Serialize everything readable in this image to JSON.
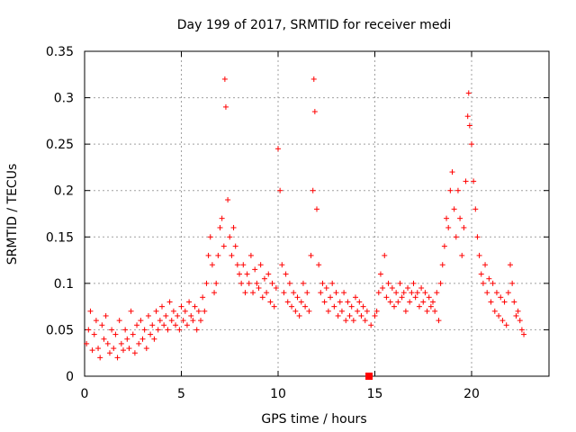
{
  "chart_data": {
    "type": "scatter",
    "title": "Day 199 of 2017, SRMTID for receiver medi",
    "xlabel": "GPS time / hours",
    "ylabel": "SRMTID / TECUs",
    "xlim": [
      0,
      24
    ],
    "ylim": [
      0,
      0.35
    ],
    "grid": true,
    "marker": "plus",
    "marker_color": "#ff0000",
    "x_ticks": [
      {
        "value": 0,
        "label": "0"
      },
      {
        "value": 5,
        "label": "5"
      },
      {
        "value": 10,
        "label": "10"
      },
      {
        "value": 15,
        "label": "15"
      },
      {
        "value": 20,
        "label": "20"
      }
    ],
    "y_ticks": [
      {
        "value": 0,
        "label": "0"
      },
      {
        "value": 0.05,
        "label": "0.05"
      },
      {
        "value": 0.1,
        "label": "0.1"
      },
      {
        "value": 0.15,
        "label": "0.15"
      },
      {
        "value": 0.2,
        "label": "0.2"
      },
      {
        "value": 0.25,
        "label": "0.25"
      },
      {
        "value": 0.3,
        "label": "0.3"
      },
      {
        "value": 0.35,
        "label": "0.35"
      }
    ],
    "series": [
      {
        "name": "SRMTID",
        "points": [
          [
            0.1,
            0.035
          ],
          [
            0.2,
            0.05
          ],
          [
            0.3,
            0.07
          ],
          [
            0.4,
            0.028
          ],
          [
            0.5,
            0.045
          ],
          [
            0.6,
            0.06
          ],
          [
            0.7,
            0.03
          ],
          [
            0.8,
            0.02
          ],
          [
            0.9,
            0.055
          ],
          [
            1.0,
            0.04
          ],
          [
            1.1,
            0.065
          ],
          [
            1.2,
            0.035
          ],
          [
            1.3,
            0.025
          ],
          [
            1.4,
            0.05
          ],
          [
            1.5,
            0.03
          ],
          [
            1.6,
            0.045
          ],
          [
            1.7,
            0.02
          ],
          [
            1.8,
            0.06
          ],
          [
            1.9,
            0.035
          ],
          [
            2.0,
            0.028
          ],
          [
            2.1,
            0.05
          ],
          [
            2.2,
            0.04
          ],
          [
            2.3,
            0.03
          ],
          [
            2.4,
            0.07
          ],
          [
            2.5,
            0.045
          ],
          [
            2.6,
            0.025
          ],
          [
            2.7,
            0.055
          ],
          [
            2.8,
            0.035
          ],
          [
            2.9,
            0.06
          ],
          [
            3.0,
            0.04
          ],
          [
            3.1,
            0.05
          ],
          [
            3.2,
            0.03
          ],
          [
            3.3,
            0.065
          ],
          [
            3.4,
            0.045
          ],
          [
            3.5,
            0.055
          ],
          [
            3.6,
            0.04
          ],
          [
            3.7,
            0.07
          ],
          [
            3.8,
            0.05
          ],
          [
            3.9,
            0.06
          ],
          [
            4.0,
            0.075
          ],
          [
            4.1,
            0.055
          ],
          [
            4.2,
            0.065
          ],
          [
            4.3,
            0.05
          ],
          [
            4.4,
            0.08
          ],
          [
            4.5,
            0.06
          ],
          [
            4.6,
            0.07
          ],
          [
            4.7,
            0.055
          ],
          [
            4.8,
            0.065
          ],
          [
            4.9,
            0.05
          ],
          [
            5.0,
            0.075
          ],
          [
            5.1,
            0.06
          ],
          [
            5.2,
            0.07
          ],
          [
            5.3,
            0.055
          ],
          [
            5.4,
            0.08
          ],
          [
            5.5,
            0.065
          ],
          [
            5.6,
            0.06
          ],
          [
            5.7,
            0.075
          ],
          [
            5.8,
            0.05
          ],
          [
            5.9,
            0.07
          ],
          [
            6.0,
            0.06
          ],
          [
            6.1,
            0.085
          ],
          [
            6.2,
            0.07
          ],
          [
            6.3,
            0.1
          ],
          [
            6.4,
            0.13
          ],
          [
            6.5,
            0.15
          ],
          [
            6.6,
            0.12
          ],
          [
            6.7,
            0.09
          ],
          [
            6.8,
            0.1
          ],
          [
            6.9,
            0.13
          ],
          [
            7.0,
            0.16
          ],
          [
            7.1,
            0.17
          ],
          [
            7.2,
            0.14
          ],
          [
            7.25,
            0.32
          ],
          [
            7.3,
            0.29
          ],
          [
            7.4,
            0.19
          ],
          [
            7.5,
            0.15
          ],
          [
            7.6,
            0.13
          ],
          [
            7.7,
            0.16
          ],
          [
            7.8,
            0.14
          ],
          [
            7.9,
            0.12
          ],
          [
            8.0,
            0.11
          ],
          [
            8.1,
            0.1
          ],
          [
            8.2,
            0.12
          ],
          [
            8.3,
            0.09
          ],
          [
            8.4,
            0.11
          ],
          [
            8.5,
            0.1
          ],
          [
            8.6,
            0.13
          ],
          [
            8.7,
            0.09
          ],
          [
            8.8,
            0.115
          ],
          [
            8.9,
            0.1
          ],
          [
            9.0,
            0.095
          ],
          [
            9.1,
            0.12
          ],
          [
            9.2,
            0.085
          ],
          [
            9.3,
            0.105
          ],
          [
            9.4,
            0.09
          ],
          [
            9.5,
            0.11
          ],
          [
            9.6,
            0.08
          ],
          [
            9.7,
            0.1
          ],
          [
            9.8,
            0.075
          ],
          [
            9.9,
            0.095
          ],
          [
            10.0,
            0.245
          ],
          [
            10.1,
            0.2
          ],
          [
            10.2,
            0.12
          ],
          [
            10.3,
            0.09
          ],
          [
            10.4,
            0.11
          ],
          [
            10.5,
            0.08
          ],
          [
            10.6,
            0.1
          ],
          [
            10.7,
            0.075
          ],
          [
            10.8,
            0.09
          ],
          [
            10.9,
            0.07
          ],
          [
            11.0,
            0.085
          ],
          [
            11.1,
            0.065
          ],
          [
            11.2,
            0.08
          ],
          [
            11.3,
            0.1
          ],
          [
            11.4,
            0.075
          ],
          [
            11.5,
            0.09
          ],
          [
            11.6,
            0.07
          ],
          [
            11.7,
            0.13
          ],
          [
            11.8,
            0.2
          ],
          [
            11.85,
            0.32
          ],
          [
            11.9,
            0.285
          ],
          [
            12.0,
            0.18
          ],
          [
            12.1,
            0.12
          ],
          [
            12.2,
            0.09
          ],
          [
            12.3,
            0.1
          ],
          [
            12.4,
            0.08
          ],
          [
            12.5,
            0.095
          ],
          [
            12.6,
            0.07
          ],
          [
            12.7,
            0.085
          ],
          [
            12.8,
            0.1
          ],
          [
            12.9,
            0.075
          ],
          [
            13.0,
            0.09
          ],
          [
            13.1,
            0.065
          ],
          [
            13.2,
            0.08
          ],
          [
            13.3,
            0.07
          ],
          [
            13.4,
            0.09
          ],
          [
            13.5,
            0.06
          ],
          [
            13.6,
            0.08
          ],
          [
            13.7,
            0.065
          ],
          [
            13.8,
            0.075
          ],
          [
            13.9,
            0.06
          ],
          [
            14.0,
            0.085
          ],
          [
            14.1,
            0.07
          ],
          [
            14.2,
            0.08
          ],
          [
            14.3,
            0.065
          ],
          [
            14.4,
            0.075
          ],
          [
            14.5,
            0.06
          ],
          [
            14.6,
            0.07
          ],
          [
            14.8,
            0.055
          ],
          [
            15.0,
            0.065
          ],
          [
            15.1,
            0.07
          ],
          [
            15.2,
            0.09
          ],
          [
            15.3,
            0.11
          ],
          [
            15.4,
            0.095
          ],
          [
            15.5,
            0.13
          ],
          [
            15.6,
            0.085
          ],
          [
            15.7,
            0.1
          ],
          [
            15.8,
            0.08
          ],
          [
            15.9,
            0.095
          ],
          [
            16.0,
            0.075
          ],
          [
            16.1,
            0.09
          ],
          [
            16.2,
            0.08
          ],
          [
            16.3,
            0.1
          ],
          [
            16.4,
            0.085
          ],
          [
            16.5,
            0.09
          ],
          [
            16.6,
            0.07
          ],
          [
            16.7,
            0.095
          ],
          [
            16.8,
            0.08
          ],
          [
            16.9,
            0.09
          ],
          [
            17.0,
            0.1
          ],
          [
            17.1,
            0.085
          ],
          [
            17.2,
            0.09
          ],
          [
            17.3,
            0.075
          ],
          [
            17.4,
            0.095
          ],
          [
            17.5,
            0.08
          ],
          [
            17.6,
            0.09
          ],
          [
            17.7,
            0.07
          ],
          [
            17.8,
            0.085
          ],
          [
            17.9,
            0.075
          ],
          [
            18.0,
            0.08
          ],
          [
            18.1,
            0.07
          ],
          [
            18.2,
            0.09
          ],
          [
            18.3,
            0.06
          ],
          [
            18.4,
            0.1
          ],
          [
            18.5,
            0.12
          ],
          [
            18.6,
            0.14
          ],
          [
            18.7,
            0.17
          ],
          [
            18.8,
            0.16
          ],
          [
            18.9,
            0.2
          ],
          [
            19.0,
            0.22
          ],
          [
            19.1,
            0.18
          ],
          [
            19.2,
            0.15
          ],
          [
            19.3,
            0.2
          ],
          [
            19.4,
            0.17
          ],
          [
            19.5,
            0.13
          ],
          [
            19.6,
            0.16
          ],
          [
            19.7,
            0.21
          ],
          [
            19.8,
            0.28
          ],
          [
            19.85,
            0.305
          ],
          [
            19.9,
            0.27
          ],
          [
            20.0,
            0.25
          ],
          [
            20.1,
            0.21
          ],
          [
            20.2,
            0.18
          ],
          [
            20.3,
            0.15
          ],
          [
            20.4,
            0.13
          ],
          [
            20.5,
            0.11
          ],
          [
            20.6,
            0.1
          ],
          [
            20.7,
            0.12
          ],
          [
            20.8,
            0.09
          ],
          [
            20.9,
            0.105
          ],
          [
            21.0,
            0.08
          ],
          [
            21.1,
            0.1
          ],
          [
            21.2,
            0.07
          ],
          [
            21.3,
            0.09
          ],
          [
            21.4,
            0.065
          ],
          [
            21.5,
            0.085
          ],
          [
            21.6,
            0.06
          ],
          [
            21.7,
            0.08
          ],
          [
            21.8,
            0.055
          ],
          [
            21.9,
            0.09
          ],
          [
            22.0,
            0.12
          ],
          [
            22.1,
            0.1
          ],
          [
            22.2,
            0.08
          ],
          [
            22.3,
            0.065
          ],
          [
            22.4,
            0.07
          ],
          [
            22.5,
            0.06
          ],
          [
            22.6,
            0.05
          ],
          [
            22.7,
            0.045
          ]
        ]
      }
    ],
    "markers": [
      {
        "name": "zero-marker",
        "x": 14.7,
        "y": 0,
        "shape": "square",
        "color": "#ff0000"
      }
    ]
  }
}
